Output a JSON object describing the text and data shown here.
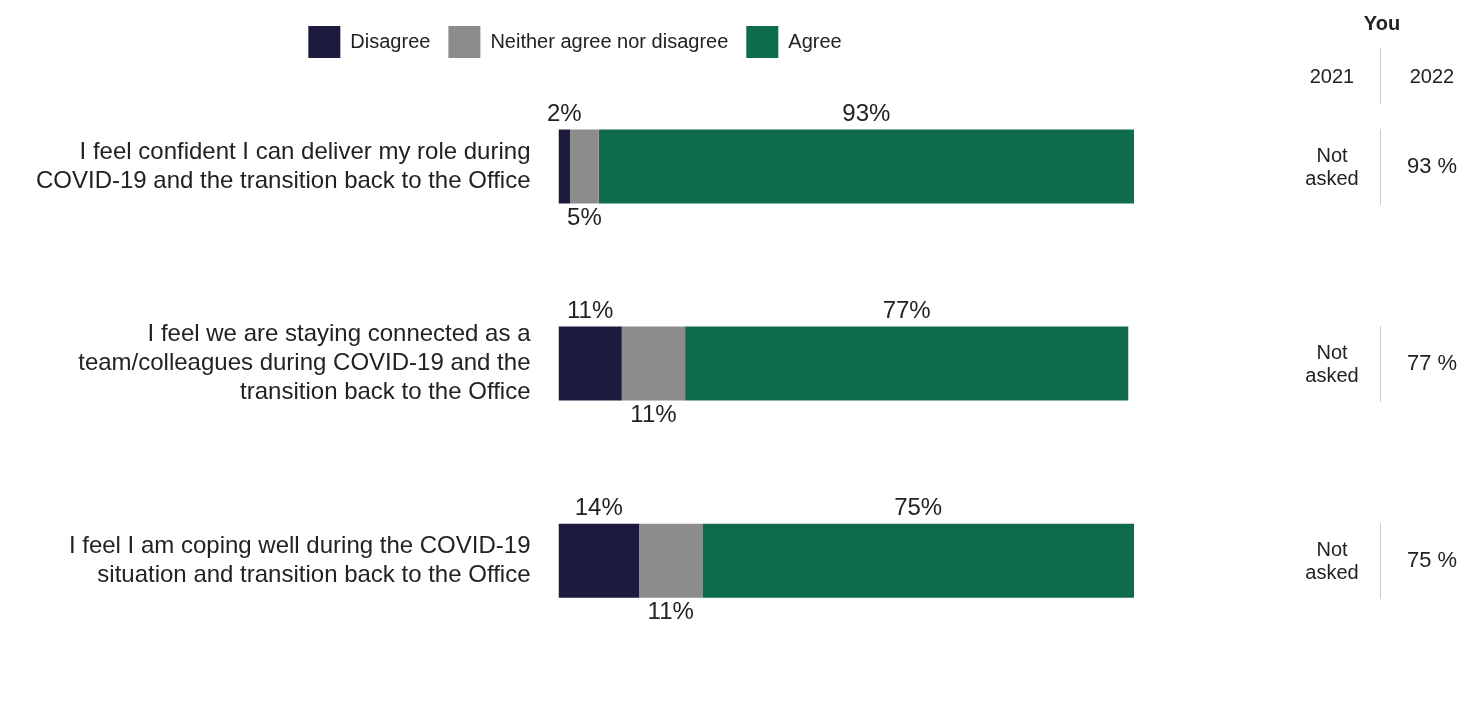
{
  "chart_data": {
    "type": "bar",
    "orientation": "horizontal",
    "stacked": true,
    "categories": [
      "I feel confident I can deliver my role during COVID-19 and the transition back to the Office",
      "I feel we are staying connected as a team/colleagues during COVID-19 and the transition back to the Office",
      "I feel I am coping well during the COVID-19 situation and transition back to the Office"
    ],
    "series": [
      {
        "name": "Disagree",
        "color": "#1c1b3d",
        "values": [
          2,
          11,
          14
        ],
        "value_labels": [
          "2%",
          "11%",
          "14%"
        ]
      },
      {
        "name": "Neither agree nor disagree",
        "color": "#8c8c8c",
        "values": [
          5,
          11,
          11
        ],
        "value_labels": [
          "5%",
          "11%",
          "11%"
        ]
      },
      {
        "name": "Agree",
        "color": "#0f6b4e",
        "values": [
          93,
          77,
          75
        ],
        "value_labels": [
          "93%",
          "77%",
          "75%"
        ]
      }
    ],
    "tick_labels": "y",
    "grid": false,
    "legend": "top",
    "annotations": [
      "You",
      "2021",
      "2022",
      "Not asked",
      "93 %",
      "Not asked",
      "77 %",
      "Not asked",
      "75 %"
    ]
  }
}
